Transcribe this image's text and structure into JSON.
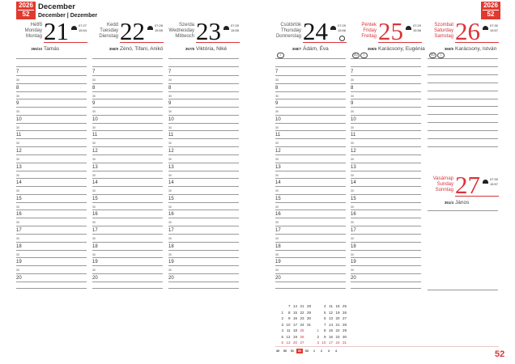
{
  "header": {
    "year": "2026",
    "week": "52",
    "month": "December",
    "month_translations": "December | Dezember"
  },
  "page_number": "52",
  "hours": [
    "7",
    "8",
    "9",
    "10",
    "11",
    "12",
    "13",
    "14",
    "15",
    "16",
    "17",
    "18",
    "19",
    "20"
  ],
  "half_label": "30",
  "days": [
    {
      "num": "21",
      "names": [
        "Hétfő",
        "Monday",
        "Montag"
      ],
      "sunrise": "07:27",
      "sunset": "15:54",
      "doy": "355/10",
      "nameday": "Tamás",
      "holiday": false,
      "badges": []
    },
    {
      "num": "22",
      "names": [
        "Kedd",
        "Tuesday",
        "Dienstag"
      ],
      "sunrise": "07:28",
      "sunset": "15:55",
      "doy": "356/9",
      "nameday": "Zénó, Tifani, Anikó",
      "holiday": false,
      "badges": []
    },
    {
      "num": "23",
      "names": [
        "Szerda",
        "Wednesday",
        "Mittwoch"
      ],
      "sunrise": "07:29",
      "sunset": "15:55",
      "doy": "357/8",
      "nameday": "Viktória, Niké",
      "holiday": false,
      "badges": []
    },
    {
      "num": "24",
      "names": [
        "Csütörtök",
        "Thursday",
        "Donnerstag"
      ],
      "sunrise": "07:29",
      "sunset": "15:56",
      "doy": "358/7",
      "nameday": "Ádám, Éva",
      "holiday": false,
      "moon": "full-moon",
      "badges": [
        "•"
      ]
    },
    {
      "num": "25",
      "names": [
        "Péntek",
        "Friday",
        "Freitag"
      ],
      "sunrise": "07:29",
      "sunset": "15:56",
      "doy": "359/6",
      "nameday": "Karácsony, Eugénia",
      "holiday": true,
      "badges": [
        "EU",
        "•"
      ]
    },
    {
      "num": "26",
      "names": [
        "Szombat",
        "Saturday",
        "Samstag"
      ],
      "sunrise": "07:30",
      "sunset": "15:57",
      "doy": "360/5",
      "nameday": "Karácsony, István",
      "holiday": true,
      "badges": [
        "EU",
        "•"
      ]
    },
    {
      "num": "27",
      "names": [
        "Vasárnap",
        "Sunday",
        "Sonntag"
      ],
      "sunrise": "07:30",
      "sunset": "15:57",
      "doy": "361/4",
      "nameday": "János",
      "holiday": true,
      "badges": []
    }
  ],
  "mini_calendar": {
    "months": [
      {
        "columns": [
          [
            "",
            "1",
            "2",
            "3",
            "4",
            "5",
            "6"
          ],
          [
            "7",
            "8",
            "9",
            "10",
            "11",
            "12",
            "13"
          ],
          [
            "14",
            "15",
            "16",
            "17",
            "18",
            "19",
            "20"
          ],
          [
            "21",
            "22",
            "23",
            "24",
            "25",
            "26",
            "27"
          ],
          [
            "28",
            "29",
            "30",
            "31",
            "",
            "",
            ""
          ]
        ],
        "red": [
          "6",
          "13",
          "20",
          "27",
          "25",
          "26"
        ]
      },
      {
        "columns": [
          [
            "",
            "",
            "",
            "",
            "1",
            "2",
            "3"
          ],
          [
            "4",
            "5",
            "6",
            "7",
            "8",
            "9",
            "10"
          ],
          [
            "11",
            "12",
            "13",
            "14",
            "15",
            "16",
            "17"
          ],
          [
            "18",
            "19",
            "20",
            "21",
            "22",
            "23",
            "24"
          ],
          [
            "25",
            "26",
            "27",
            "28",
            "29",
            "30",
            "31"
          ]
        ],
        "red": [
          "1",
          "3",
          "10",
          "17",
          "24",
          "31"
        ]
      }
    ],
    "weeks": [
      "49",
      "50",
      "51",
      "52",
      "53",
      "1",
      "2",
      "3",
      "4"
    ],
    "current_week": "52"
  },
  "colors": {
    "accent": "#e03a30",
    "holiday": "#d8353a",
    "line": "#999999"
  }
}
